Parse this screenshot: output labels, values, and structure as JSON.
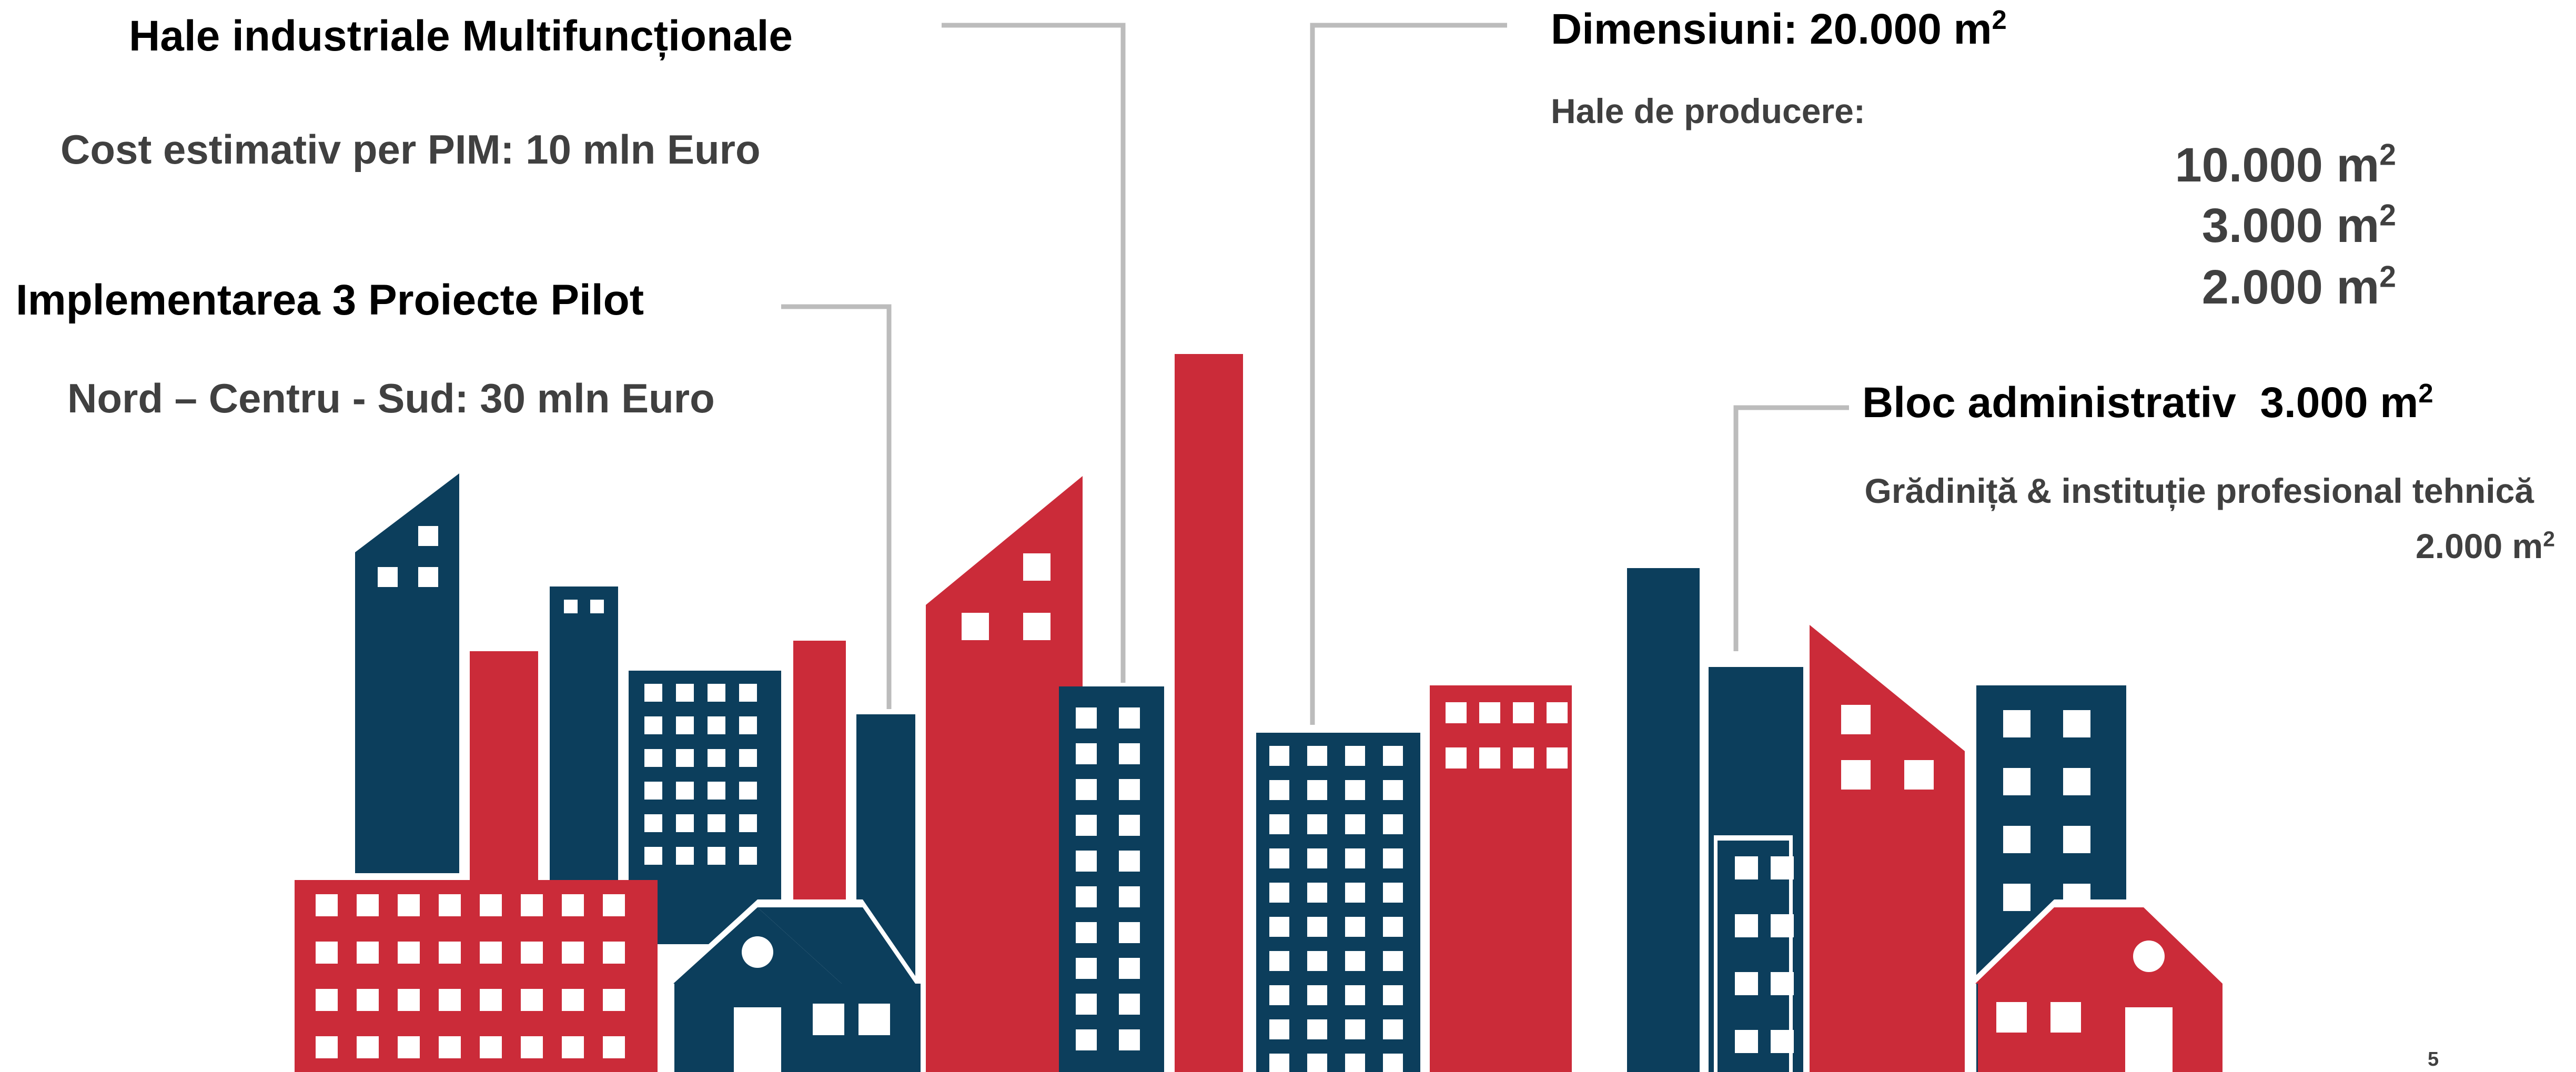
{
  "colors": {
    "red": "#cb2b39",
    "navy": "#0c3e5c",
    "leader": "#bcbcbc",
    "text_dark": "#000000",
    "text_grey": "#404040"
  },
  "left": {
    "halls_title": "Hale industriale Multifuncționale",
    "cost_label": "Cost estimativ per PIM: 10 mln Euro",
    "pilot_title": "Implementarea 3 Proiecte Pilot",
    "pilot_cost": "Nord – Centru - Sud: 30 mln Euro"
  },
  "right": {
    "dimensions_title": "Dimensiuni: 20.000 m",
    "dimensions_sup": "2",
    "production_label": "Hale de producere:",
    "production_areas": [
      {
        "value": "10.000 m",
        "sup": "2"
      },
      {
        "value": "3.000 m",
        "sup": "2"
      },
      {
        "value": "2.000 m",
        "sup": "2"
      }
    ],
    "admin_title": "Bloc administrativ  3.000 m",
    "admin_sup": "2",
    "kindergarten_label": "Grădiniță & instituție profesional tehnică",
    "kindergarten_area": "2.000 m",
    "kindergarten_sup": "2"
  },
  "page_number": "5"
}
